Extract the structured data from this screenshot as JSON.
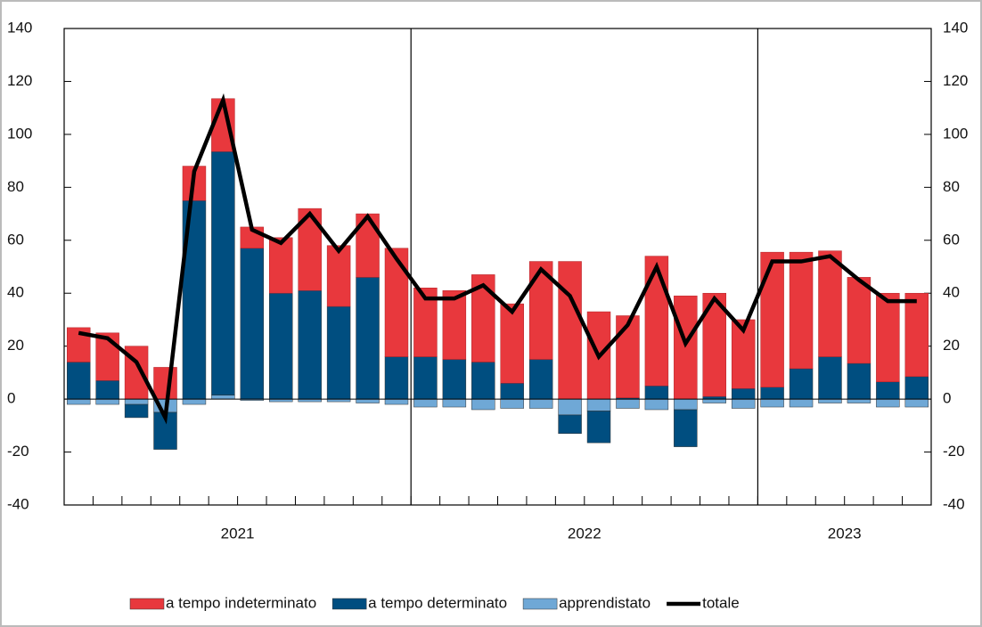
{
  "chart_data": {
    "type": "bar",
    "stacked": true,
    "categories": [
      "2021",
      null,
      null,
      null,
      null,
      null,
      null,
      null,
      null,
      null,
      null,
      null,
      "2022",
      null,
      null,
      null,
      null,
      null,
      null,
      null,
      null,
      null,
      null,
      null,
      "2023",
      null,
      null,
      null,
      null,
      null
    ],
    "series": [
      {
        "name": "a tempo indeterminato",
        "color": "#e8383d",
        "values": [
          13,
          18,
          20,
          12,
          13,
          20,
          8,
          21,
          31,
          23,
          24,
          41,
          26,
          26,
          33,
          30,
          37,
          52,
          33,
          31,
          49,
          39,
          39,
          26,
          51,
          44,
          40,
          32.5,
          33.5,
          31.5
        ]
      },
      {
        "name": "a tempo determinato",
        "color": "#004e80",
        "values": [
          14,
          7,
          -5,
          -14,
          75,
          92,
          57,
          40,
          41,
          35,
          46,
          16,
          16,
          15,
          14,
          6,
          15,
          -7,
          -12,
          0.5,
          5,
          -14,
          1,
          4,
          4.5,
          11.5,
          16,
          13.5,
          6.5,
          8.5
        ]
      },
      {
        "name": "apprendistato",
        "color": "#6fa8d6",
        "values": [
          -2,
          -2,
          -2,
          -5,
          -2,
          1.5,
          -0.5,
          -1,
          -1,
          -1,
          -1.5,
          -2,
          -3,
          -3,
          -4,
          -3.5,
          -3.5,
          -6,
          -4.5,
          -3.5,
          -4,
          -4,
          -1.5,
          -3.5,
          -3,
          -3,
          -1.5,
          -1.5,
          -3,
          -3
        ]
      },
      {
        "name": "totale",
        "color": "#000000",
        "type": "line",
        "values": [
          25,
          23,
          14,
          -7,
          86,
          113,
          64,
          59,
          70,
          56,
          69,
          53,
          38,
          38,
          43,
          33,
          49,
          39,
          16,
          28,
          50,
          21,
          38,
          26,
          52,
          52,
          54,
          45,
          37,
          37
        ]
      }
    ],
    "ylim": [
      -40,
      140
    ],
    "yticks": [
      -40,
      -20,
      0,
      20,
      40,
      60,
      80,
      100,
      120,
      140
    ],
    "y2lim": [
      -40,
      140
    ],
    "y2ticks": [
      -40,
      -20,
      0,
      20,
      40,
      60,
      80,
      100,
      120,
      140
    ],
    "legend": "bottom"
  }
}
